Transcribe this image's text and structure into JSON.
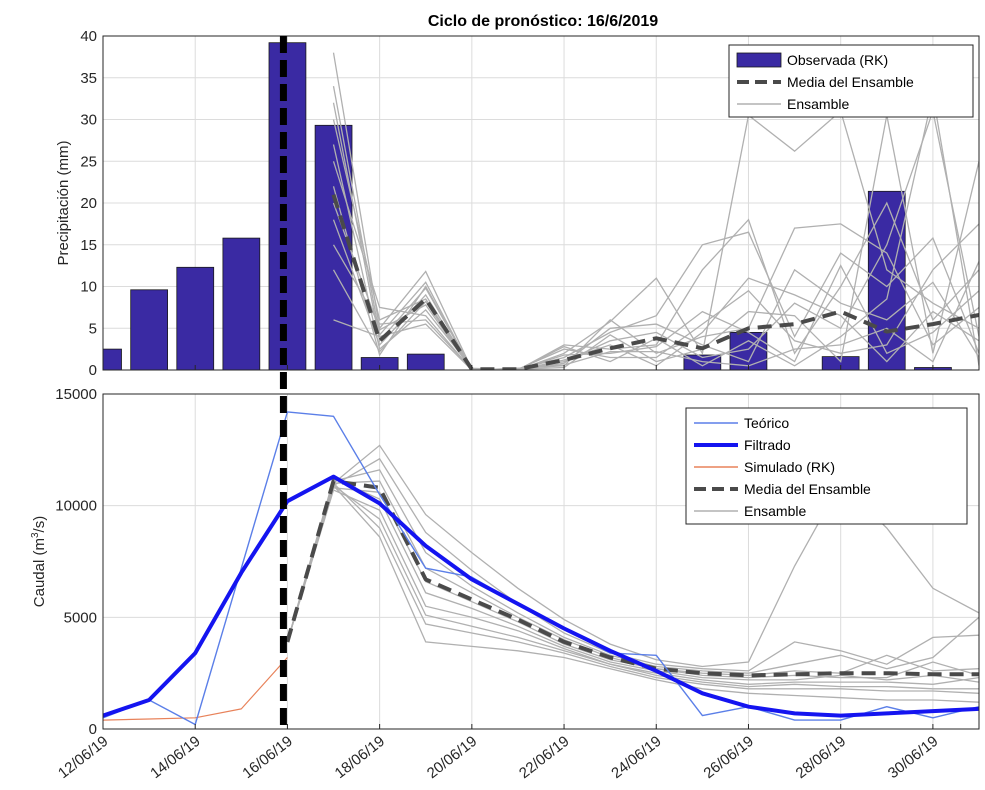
{
  "chart_data": [
    {
      "type": "bar",
      "title": "Ciclo de pronóstico: 16/6/2019",
      "ylabel": "Precipitación (mm)",
      "xlabel": "",
      "ylim": [
        0,
        40
      ],
      "yticks": [
        0,
        5,
        10,
        15,
        20,
        25,
        30,
        35,
        40
      ],
      "x_start": 12,
      "x_end": 31,
      "grid": true,
      "legend_position": "top-right",
      "forecast_cycle_day": 16,
      "bar_color": "#3a2aa3",
      "bars": {
        "name": "Observada (RK)",
        "x": [
          12,
          13,
          14,
          15,
          16,
          17,
          18,
          19,
          20,
          21,
          22,
          23,
          24,
          25,
          26,
          27,
          28,
          29,
          30
        ],
        "values": [
          2.5,
          9.6,
          12.3,
          15.8,
          39.2,
          29.3,
          1.5,
          1.9,
          0,
          0,
          0,
          0,
          0,
          1.8,
          4.5,
          0,
          1.6,
          21.4,
          0.3
        ]
      },
      "mean": {
        "name": "Media del Ensamble",
        "x": [
          17,
          18,
          19,
          20,
          21,
          22,
          23,
          24,
          25,
          26,
          27,
          28,
          29,
          30,
          31
        ],
        "values": [
          21,
          3.5,
          8.5,
          0.1,
          0.1,
          1.2,
          2.6,
          3.8,
          2.6,
          5.0,
          5.5,
          7.0,
          4.6,
          5.5,
          6.6
        ]
      },
      "ensemble": {
        "name": "Ensamble",
        "x": [
          17,
          18,
          19,
          20,
          21,
          22,
          23,
          24,
          25,
          26,
          27,
          28,
          29,
          30,
          31
        ],
        "members": [
          [
            38.0,
            5.0,
            11.8,
            0.1,
            0.0,
            2.0,
            5.8,
            11.0,
            2.0,
            30.5,
            26.2,
            31.0,
            12.0,
            8.0,
            5.0
          ],
          [
            34.0,
            4.2,
            10.5,
            0.0,
            0.1,
            1.5,
            4.5,
            6.5,
            15.0,
            16.5,
            4.0,
            14.0,
            10.0,
            15.8,
            2.0
          ],
          [
            32.0,
            3.5,
            9.8,
            0.1,
            0.0,
            3.0,
            2.5,
            3.0,
            12.0,
            18.0,
            2.0,
            10.0,
            20.0,
            6.0,
            12.0
          ],
          [
            30.0,
            6.0,
            8.5,
            0.0,
            0.2,
            0.5,
            6.0,
            2.0,
            4.0,
            5.0,
            17.0,
            17.5,
            14.0,
            3.0,
            7.5
          ],
          [
            27.0,
            2.5,
            7.2,
            0.2,
            0.0,
            1.0,
            3.5,
            4.5,
            1.5,
            2.5,
            8.0,
            5.0,
            15.0,
            31.0,
            4.0
          ],
          [
            25.0,
            7.5,
            6.5,
            0.0,
            0.1,
            2.5,
            1.5,
            1.5,
            5.5,
            9.5,
            3.5,
            2.0,
            3.0,
            12.0,
            17.5
          ],
          [
            22.0,
            1.8,
            10.0,
            0.1,
            0.0,
            0.8,
            5.0,
            5.5,
            3.0,
            1.0,
            12.0,
            8.0,
            6.0,
            10.5,
            1.5
          ],
          [
            20.0,
            4.8,
            7.8,
            0.0,
            0.0,
            1.8,
            2.0,
            2.8,
            7.0,
            4.5,
            1.0,
            12.5,
            2.0,
            4.5,
            9.5
          ],
          [
            18.0,
            3.0,
            9.0,
            0.0,
            0.1,
            0.3,
            4.2,
            1.0,
            2.5,
            7.0,
            6.5,
            1.0,
            30.5,
            2.0,
            25.0
          ],
          [
            15.0,
            5.5,
            6.0,
            0.1,
            0.0,
            2.8,
            1.0,
            3.8,
            0.5,
            3.5,
            0.5,
            4.0,
            8.5,
            33.0,
            0.5
          ],
          [
            12.0,
            2.2,
            8.2,
            0.0,
            0.0,
            1.2,
            3.0,
            0.5,
            4.5,
            11.0,
            9.0,
            6.5,
            1.0,
            7.0,
            3.5
          ],
          [
            6.0,
            4.0,
            5.5,
            0.0,
            0.2,
            0.6,
            2.2,
            2.2,
            1.0,
            0.5,
            2.5,
            3.0,
            5.0,
            1.0,
            13.0
          ]
        ]
      }
    },
    {
      "type": "line",
      "ylabel": "Caudal (m³/s)",
      "ylabel_parts": [
        "Caudal (m",
        "3",
        "/s)"
      ],
      "xlabel": "",
      "ylim": [
        0,
        15000
      ],
      "yticks": [
        0,
        5000,
        10000,
        15000
      ],
      "x_start": 12,
      "x_end": 31,
      "xtick_days": [
        12,
        14,
        16,
        18,
        20,
        22,
        24,
        26,
        28,
        30
      ],
      "xtick_labels": [
        "12/06/19",
        "14/06/19",
        "16/06/19",
        "18/06/19",
        "20/06/19",
        "22/06/19",
        "24/06/19",
        "26/06/19",
        "28/06/19",
        "30/06/19"
      ],
      "grid": true,
      "legend_position": "top-right",
      "forecast_cycle_day": 16,
      "series": [
        {
          "name": "Teórico",
          "color": "#5b7fe8",
          "x": [
            12,
            13,
            14,
            15,
            16,
            17,
            18,
            19,
            20,
            21,
            22,
            23,
            24,
            25,
            26,
            27,
            28,
            29,
            30,
            31
          ],
          "values": [
            500,
            1300,
            200,
            7200,
            14200,
            14000,
            10500,
            7200,
            6800,
            5600,
            4500,
            3400,
            3300,
            600,
            1000,
            400,
            400,
            1000,
            500,
            1000
          ]
        },
        {
          "name": "Filtrado",
          "color": "#1414f0",
          "x": [
            12,
            13,
            14,
            15,
            16,
            17,
            18,
            19,
            20,
            21,
            22,
            23,
            24,
            25,
            26,
            27,
            28,
            29,
            30,
            31
          ],
          "values": [
            600,
            1300,
            3400,
            7000,
            10200,
            11300,
            10100,
            8200,
            6700,
            5600,
            4500,
            3500,
            2600,
            1600,
            1000,
            700,
            600,
            700,
            800,
            900
          ]
        },
        {
          "name": "Simulado (RK)",
          "color": "#e8825a",
          "x": [
            12,
            13,
            14,
            15,
            16
          ],
          "values": [
            400,
            450,
            500,
            900,
            3200
          ]
        },
        {
          "name": "Media del Ensamble",
          "color": "#4a4a4a",
          "x": [
            16,
            17,
            18,
            19,
            20,
            21,
            22,
            23,
            24,
            25,
            26,
            27,
            28,
            29,
            30,
            31
          ],
          "values": [
            3900,
            11100,
            10800,
            6700,
            5800,
            4900,
            3900,
            3200,
            2700,
            2500,
            2400,
            2450,
            2500,
            2500,
            2450,
            2450
          ]
        }
      ],
      "ensemble": {
        "name": "Ensamble",
        "x": [
          16,
          17,
          18,
          19,
          20,
          21,
          22,
          23,
          24,
          25,
          26,
          27,
          28,
          29,
          30,
          31
        ],
        "members": [
          [
            3900,
            11000,
            12700,
            9600,
            7900,
            6300,
            4900,
            3800,
            3100,
            2800,
            3000,
            7300,
            11000,
            9000,
            6300,
            5200
          ],
          [
            3900,
            10900,
            12100,
            8800,
            7100,
            5600,
            4300,
            3400,
            2900,
            2700,
            2600,
            3900,
            3500,
            2900,
            4100,
            4200
          ],
          [
            3900,
            11100,
            11600,
            7900,
            6400,
            5200,
            4100,
            3300,
            2800,
            2600,
            2500,
            2900,
            3300,
            2700,
            3200,
            5000
          ],
          [
            3900,
            11000,
            11100,
            7200,
            6100,
            5000,
            4000,
            3200,
            2700,
            2500,
            2400,
            2600,
            2500,
            3300,
            2600,
            2700
          ],
          [
            3900,
            10800,
            10600,
            6600,
            5700,
            4800,
            3800,
            3100,
            2700,
            2400,
            2300,
            2400,
            2300,
            2300,
            3000,
            2400
          ],
          [
            3900,
            11200,
            10300,
            6100,
            5400,
            4600,
            3700,
            3000,
            2600,
            2300,
            2200,
            2200,
            2400,
            2200,
            2400,
            2100
          ],
          [
            3900,
            10700,
            9800,
            5500,
            5000,
            4400,
            3600,
            2900,
            2500,
            2200,
            2000,
            2100,
            2100,
            2100,
            2000,
            2300
          ],
          [
            3900,
            10900,
            9400,
            5100,
            4600,
            4100,
            3500,
            2900,
            2400,
            2100,
            1900,
            2000,
            1900,
            1900,
            1800,
            1800
          ],
          [
            3900,
            11000,
            9000,
            4700,
            4300,
            3900,
            3400,
            2800,
            2300,
            2000,
            1800,
            1800,
            1800,
            1700,
            1700,
            1600
          ],
          [
            3900,
            10900,
            8600,
            3900,
            3700,
            3500,
            3200,
            2700,
            2200,
            1800,
            1600,
            1500,
            1400,
            1300,
            1300,
            1200
          ]
        ]
      }
    }
  ],
  "legend_top": [
    {
      "label": "Observada (RK)",
      "style": "bar",
      "color": "#3a2aa3"
    },
    {
      "label": "Media del Ensamble",
      "style": "dashed",
      "color": "#4a4a4a"
    },
    {
      "label": "Ensamble",
      "style": "thin",
      "color": "#b0b0b0"
    }
  ],
  "legend_bottom": [
    {
      "label": "Teórico",
      "style": "line",
      "color": "#5b7fe8"
    },
    {
      "label": "Filtrado",
      "style": "thick",
      "color": "#1414f0"
    },
    {
      "label": "Simulado (RK)",
      "style": "line",
      "color": "#e8825a"
    },
    {
      "label": "Media del Ensamble",
      "style": "dashed",
      "color": "#4a4a4a"
    },
    {
      "label": "Ensamble",
      "style": "thin",
      "color": "#b0b0b0"
    }
  ]
}
